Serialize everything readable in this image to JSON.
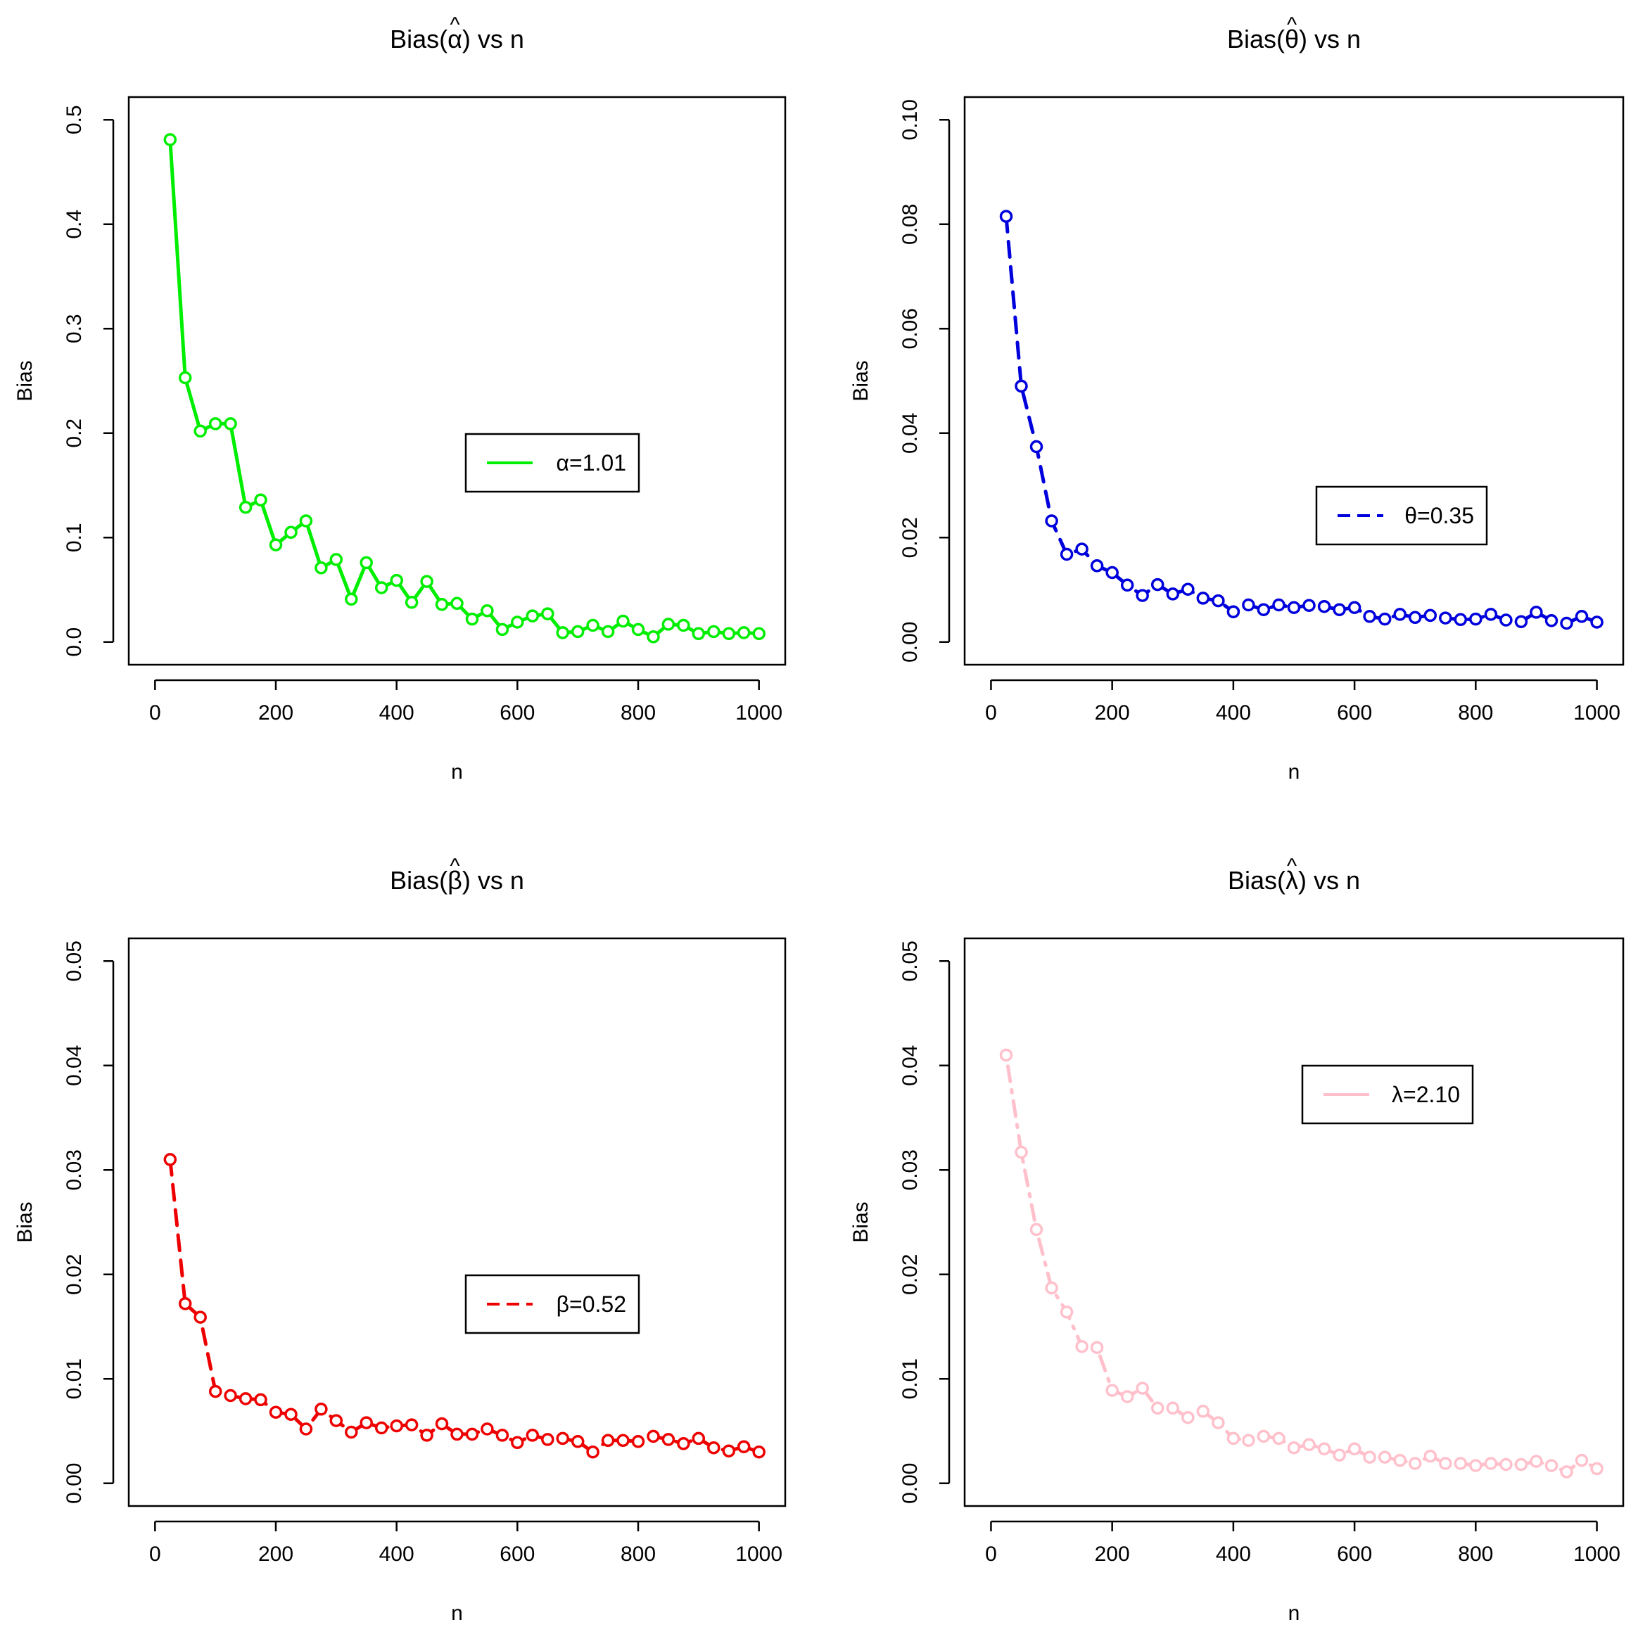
{
  "chart_data": [
    {
      "type": "line",
      "title": "Bias(α̂) vs n",
      "title_symbol": "α",
      "title_prefix": "Bias(",
      "title_suffix": ") vs n",
      "xlabel": "n",
      "ylabel": "Bias",
      "xlim": [
        0,
        1000
      ],
      "ylim": [
        0,
        0.5
      ],
      "xticks": [
        0,
        200,
        400,
        600,
        800,
        1000
      ],
      "yticks": [
        0.0,
        0.1,
        0.2,
        0.3,
        0.4,
        0.5
      ],
      "ytick_labels": [
        "0.0",
        "0.1",
        "0.2",
        "0.3",
        "0.4",
        "0.5"
      ],
      "legend_position": "center-right",
      "series": [
        {
          "name": "α=1.01",
          "color": "#00ee00",
          "line_style": "solid",
          "x": [
            25,
            50,
            75,
            100,
            125,
            150,
            175,
            200,
            225,
            250,
            275,
            300,
            325,
            350,
            375,
            400,
            425,
            450,
            475,
            500,
            525,
            550,
            575,
            600,
            625,
            650,
            675,
            700,
            725,
            750,
            775,
            800,
            825,
            850,
            875,
            900,
            925,
            950,
            975,
            1000
          ],
          "values": [
            0.481,
            0.253,
            0.202,
            0.209,
            0.209,
            0.129,
            0.136,
            0.093,
            0.105,
            0.116,
            0.071,
            0.079,
            0.041,
            0.076,
            0.052,
            0.059,
            0.038,
            0.058,
            0.036,
            0.037,
            0.022,
            0.03,
            0.012,
            0.019,
            0.025,
            0.027,
            0.009,
            0.01,
            0.016,
            0.01,
            0.02,
            0.012,
            0.005,
            0.017,
            0.016,
            0.008,
            0.01,
            0.008,
            0.009,
            0.008
          ]
        }
      ]
    },
    {
      "type": "line",
      "title": "Bias(θ̂) vs n",
      "title_symbol": "θ",
      "title_prefix": "Bias(",
      "title_suffix": ") vs n",
      "xlabel": "n",
      "ylabel": "Bias",
      "xlim": [
        0,
        1000
      ],
      "ylim": [
        0,
        0.1
      ],
      "xticks": [
        0,
        200,
        400,
        600,
        800,
        1000
      ],
      "yticks": [
        0.0,
        0.02,
        0.04,
        0.06,
        0.08,
        0.1
      ],
      "ytick_labels": [
        "0.00",
        "0.02",
        "0.04",
        "0.06",
        "0.08",
        "0.10"
      ],
      "legend_position": "center-right",
      "series": [
        {
          "name": "θ=0.35",
          "color": "#0000dd",
          "line_style": "dashed",
          "x": [
            25,
            50,
            75,
            100,
            125,
            150,
            175,
            200,
            225,
            250,
            275,
            300,
            325,
            350,
            375,
            400,
            425,
            450,
            475,
            500,
            525,
            550,
            575,
            600,
            625,
            650,
            675,
            700,
            725,
            750,
            775,
            800,
            825,
            850,
            875,
            900,
            925,
            950,
            975,
            1000
          ],
          "values": [
            0.0815,
            0.049,
            0.0374,
            0.0232,
            0.0168,
            0.0178,
            0.0146,
            0.0133,
            0.0109,
            0.0089,
            0.011,
            0.0092,
            0.0101,
            0.0084,
            0.0079,
            0.0058,
            0.0071,
            0.0062,
            0.0071,
            0.0066,
            0.007,
            0.0068,
            0.0062,
            0.0066,
            0.0049,
            0.0044,
            0.0053,
            0.0047,
            0.0051,
            0.0046,
            0.0043,
            0.0044,
            0.0053,
            0.0042,
            0.0039,
            0.0057,
            0.0041,
            0.0036,
            0.0049,
            0.0038
          ]
        }
      ]
    },
    {
      "type": "line",
      "title": "Bias(β̂) vs n",
      "title_symbol": "β",
      "title_prefix": "Bias(",
      "title_suffix": ") vs n",
      "xlabel": "n",
      "ylabel": "Bias",
      "xlim": [
        0,
        1000
      ],
      "ylim": [
        0,
        0.05
      ],
      "xticks": [
        0,
        200,
        400,
        600,
        800,
        1000
      ],
      "yticks": [
        0.0,
        0.01,
        0.02,
        0.03,
        0.04,
        0.05
      ],
      "ytick_labels": [
        "0.00",
        "0.01",
        "0.02",
        "0.03",
        "0.04",
        "0.05"
      ],
      "legend_position": "center-right",
      "series": [
        {
          "name": "β=0.52",
          "color": "#ee0000",
          "line_style": "dashed",
          "x": [
            25,
            50,
            75,
            100,
            125,
            150,
            175,
            200,
            225,
            250,
            275,
            300,
            325,
            350,
            375,
            400,
            425,
            450,
            475,
            500,
            525,
            550,
            575,
            600,
            625,
            650,
            675,
            700,
            725,
            750,
            775,
            800,
            825,
            850,
            875,
            900,
            925,
            950,
            975,
            1000
          ],
          "values": [
            0.031,
            0.0172,
            0.0159,
            0.0088,
            0.0084,
            0.0081,
            0.008,
            0.0068,
            0.0066,
            0.0052,
            0.0071,
            0.006,
            0.0049,
            0.0058,
            0.0053,
            0.0055,
            0.0056,
            0.0046,
            0.0057,
            0.0047,
            0.0047,
            0.0052,
            0.0046,
            0.0039,
            0.0046,
            0.0042,
            0.0043,
            0.004,
            0.003,
            0.0041,
            0.0041,
            0.004,
            0.0045,
            0.0042,
            0.0038,
            0.0043,
            0.0034,
            0.0031,
            0.0035,
            0.003
          ]
        }
      ]
    },
    {
      "type": "line",
      "title": "Bias(λ̂) vs n",
      "title_symbol": "λ",
      "title_prefix": "Bias(",
      "title_suffix": ") vs n",
      "xlabel": "n",
      "ylabel": "Bias",
      "xlim": [
        0,
        1000
      ],
      "ylim": [
        0,
        0.05
      ],
      "xticks": [
        0,
        200,
        400,
        600,
        800,
        1000
      ],
      "yticks": [
        0.0,
        0.01,
        0.02,
        0.03,
        0.04,
        0.05
      ],
      "ytick_labels": [
        "0.00",
        "0.01",
        "0.02",
        "0.03",
        "0.04",
        "0.05"
      ],
      "legend_position": "top-right",
      "series": [
        {
          "name": "λ=2.10",
          "color": "#ffc0cb",
          "line_style": "dotdash",
          "x": [
            25,
            50,
            75,
            100,
            125,
            150,
            175,
            200,
            225,
            250,
            275,
            300,
            325,
            350,
            375,
            400,
            425,
            450,
            475,
            500,
            525,
            550,
            575,
            600,
            625,
            650,
            675,
            700,
            725,
            750,
            775,
            800,
            825,
            850,
            875,
            900,
            925,
            950,
            975,
            1000
          ],
          "values": [
            0.041,
            0.0317,
            0.0243,
            0.0187,
            0.0164,
            0.0131,
            0.013,
            0.0089,
            0.0083,
            0.0091,
            0.0072,
            0.0072,
            0.0063,
            0.0069,
            0.0058,
            0.0043,
            0.0041,
            0.0045,
            0.0043,
            0.0034,
            0.0037,
            0.0033,
            0.0027,
            0.0033,
            0.0025,
            0.0025,
            0.0022,
            0.0019,
            0.0026,
            0.0019,
            0.0019,
            0.0017,
            0.0019,
            0.0018,
            0.0018,
            0.0021,
            0.0017,
            0.0011,
            0.0022,
            0.0014
          ]
        }
      ]
    }
  ]
}
